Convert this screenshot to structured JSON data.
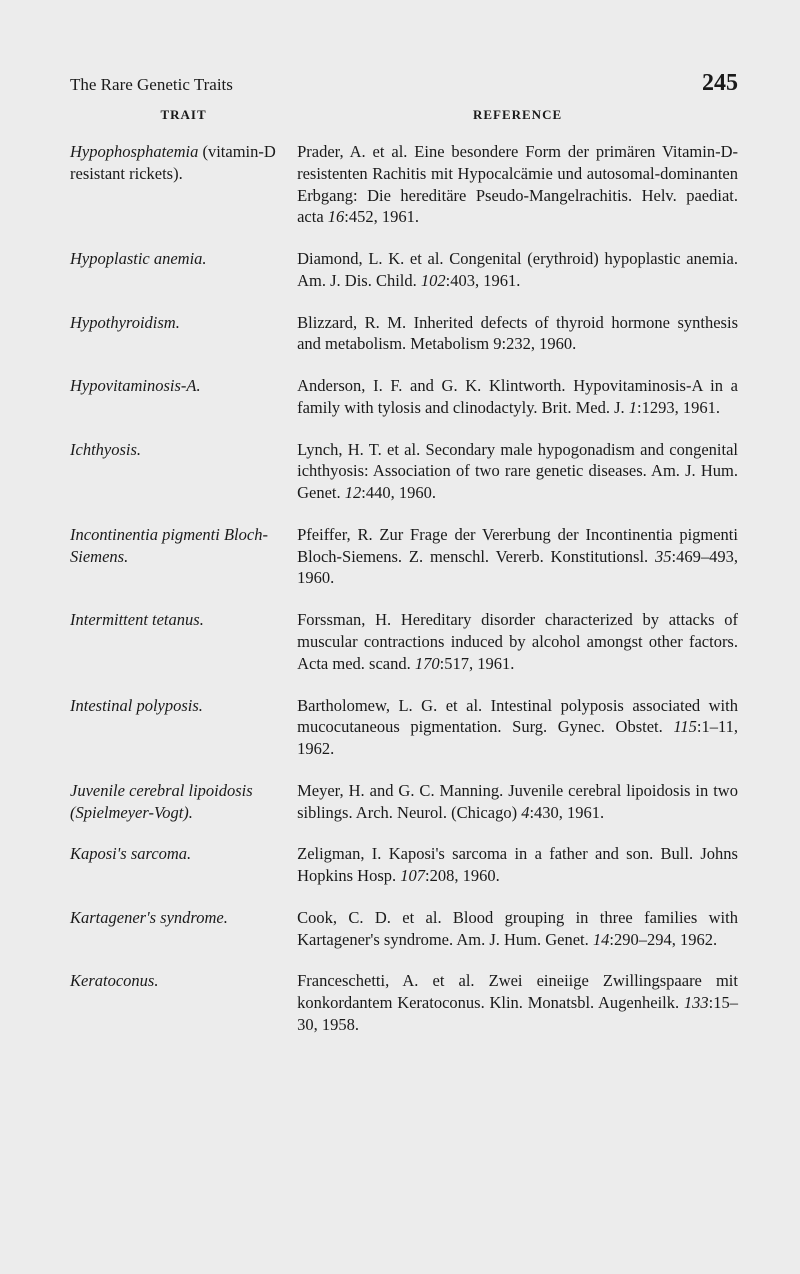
{
  "running_head": "The Rare Genetic Traits",
  "page_number": "245",
  "col_trait": "TRAIT",
  "col_reference": "REFERENCE",
  "entries": [
    {
      "trait_html": "Hypophosphatemia <span class=\"roman\">(vitamin-D resistant rickets).</span>",
      "ref_html": "Prader, A. et al. Eine besondere Form der primären Vitamin-D-resistenten Rachitis mit Hypocalcämie und autosomal-dominanten Erbgang: Die hereditäre Pseudo-Mangelrachitis. Helv. paediat. acta <em>16</em>:452, 1961."
    },
    {
      "trait_html": "Hypoplastic anemia.",
      "ref_html": "Diamond, L. K. et al. Congenital (erythroid) hypoplastic anemia. Am. J. Dis. Child. <em>102</em>:403, 1961."
    },
    {
      "trait_html": "Hypothyroidism.",
      "ref_html": "Blizzard, R. M. Inherited defects of thyroid hormone synthesis and metabolism. Metabolism 9:232, 1960."
    },
    {
      "trait_html": "Hypovitaminosis-A.",
      "ref_html": "Anderson, I. F. and G. K. Klintworth. Hypovitaminosis-A in a family with tylosis and clinodactyly. Brit. Med. J. <em>1</em>:1293, 1961."
    },
    {
      "trait_html": "Ichthyosis.",
      "ref_html": "Lynch, H. T. et al. Secondary male hypogonadism and congenital ichthyosis: Association of two rare genetic diseases. Am. J. Hum. Genet. <em>12</em>:440, 1960."
    },
    {
      "trait_html": "Incontinentia pigmenti Bloch-Siemens.",
      "ref_html": "Pfeiffer, R. Zur Frage der Vererbung der Incontinentia pigmenti Bloch-Siemens. Z. menschl. Vererb. Konstitutionsl. <em>35</em>:469–493, 1960."
    },
    {
      "trait_html": "Intermittent tetanus.",
      "ref_html": "Forssman, H. Hereditary disorder characterized by attacks of muscular contractions induced by alcohol amongst other factors. Acta med. scand. <em>170</em>:517, 1961."
    },
    {
      "trait_html": "Intestinal polyposis.",
      "ref_html": "Bartholomew, L. G. et al. Intestinal polyposis associated with mucocutaneous pigmentation. Surg. Gynec. Obstet. <em>115</em>:1–11, 1962."
    },
    {
      "trait_html": "Juvenile cerebral lipoidosis (Spielmeyer-Vogt).",
      "ref_html": "Meyer, H. and G. C. Manning. Juvenile cerebral lipoidosis in two siblings. Arch. Neurol. (Chicago) <em>4</em>:430, 1961."
    },
    {
      "trait_html": "Kaposi's sarcoma.",
      "ref_html": "Zeligman, I. Kaposi's sarcoma in a father and son. Bull. Johns Hopkins Hosp. <em>107</em>:208, 1960."
    },
    {
      "trait_html": "Kartagener's syndrome.",
      "ref_html": "Cook, C. D. et al. Blood grouping in three families with Kartagener's syndrome. Am. J. Hum. Genet. <em>14</em>:290–294, 1962."
    },
    {
      "trait_html": "Keratoconus.",
      "ref_html": "Franceschetti, A. et al. Zwei eineiige Zwillingspaare mit konkordantem Keratoconus. Klin. Monatsbl. Augenheilk. <em>133</em>:15–30, 1958."
    }
  ]
}
